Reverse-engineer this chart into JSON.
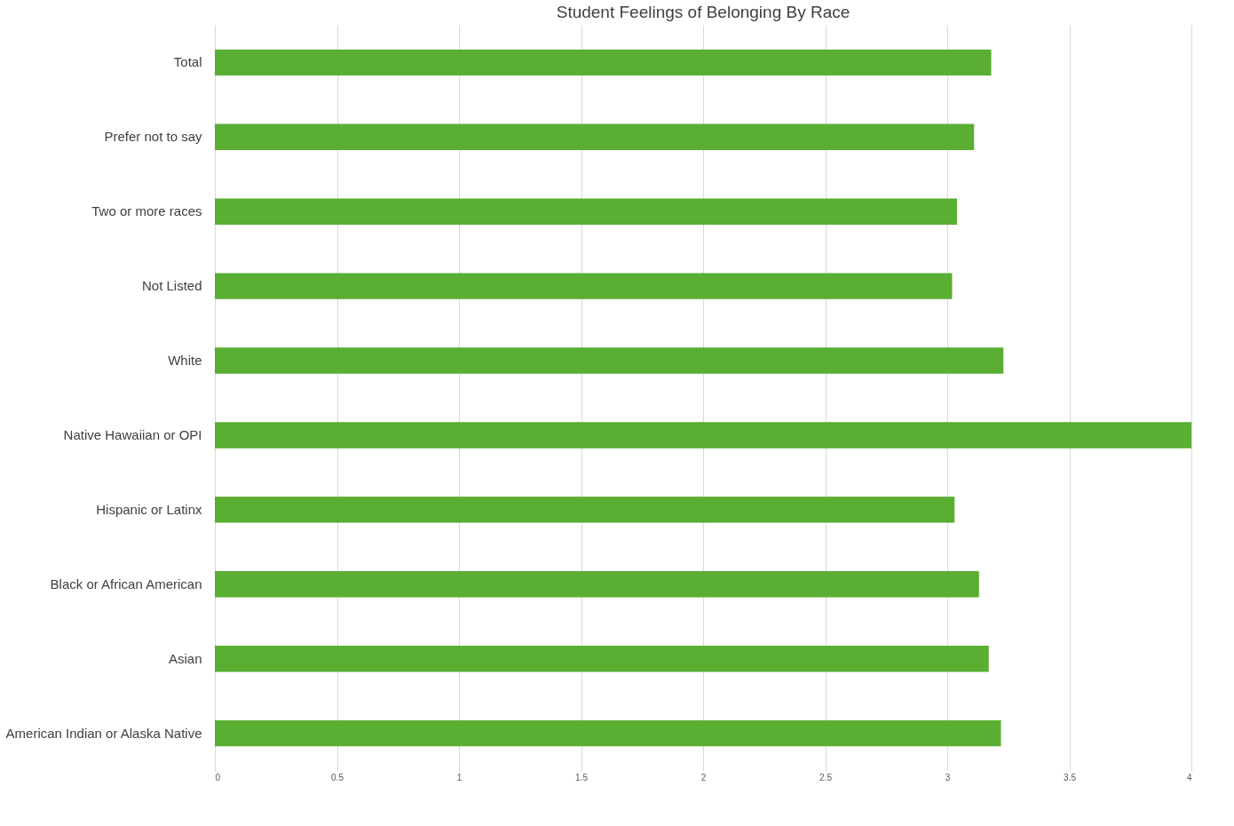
{
  "chart_data": {
    "type": "bar",
    "orientation": "horizontal",
    "title": "Student Feelings of Belonging By Race",
    "categories": [
      "Total",
      "Prefer not to say",
      "Two or more races",
      "Not Listed",
      "White",
      "Native Hawaiian or OPI",
      "Hispanic or Latinx",
      "Black or African American",
      "Asian",
      "American Indian or Alaska Native"
    ],
    "values": [
      3.18,
      3.11,
      3.04,
      3.02,
      3.23,
      4.0,
      3.03,
      3.13,
      3.17,
      3.22
    ],
    "color": "#5aae32",
    "xlim": [
      0,
      4
    ],
    "xticks": [
      0,
      0.5,
      1,
      1.5,
      2,
      2.5,
      3,
      3.5,
      4
    ],
    "grid": "x"
  }
}
